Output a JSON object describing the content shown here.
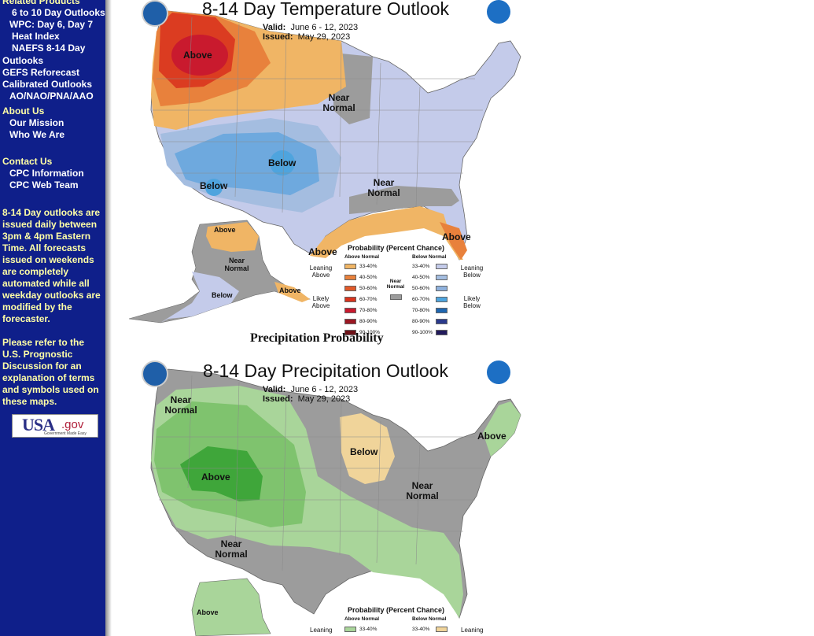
{
  "sidebar": {
    "related_products": "Related Products",
    "links": [
      "6 to 10 Day Outlooks",
      "WPC: Day 6, Day 7",
      "Heat Index",
      "NAEFS 8-14 Day",
      "Outlooks",
      "GEFS Reforecast",
      "Calibrated Outlooks",
      "AO/NAO/PNA/AAO"
    ],
    "about_us": "About Us",
    "our_mission": "Our Mission",
    "who_we_are": "Who We Are",
    "contact_us": "Contact Us",
    "cpc_information": "CPC Information",
    "cpc_web_team": "CPC Web Team",
    "note": "8-14 Day outlooks are issued daily between 3pm & 4pm Eastern Time. All forecasts issued on weekends are completely automated while all weekday outlooks are modified by the forecaster.",
    "refer": "Please refer to the U.S. Prognostic Discussion for an explanation of terms and symbols used on these maps.",
    "usa_gov": {
      "usa": "USA",
      "gov": ".gov",
      "tagline": "Government Made Easy"
    }
  },
  "temperature_map": {
    "title": "8-14 Day Temperature Outlook",
    "valid_label": "Valid:",
    "valid_value": "June 6 - 12, 2023",
    "issued_label": "Issued:",
    "issued_value": "May 29, 2023",
    "labels": [
      "Above",
      "Near Normal",
      "Below",
      "Below",
      "Near Normal",
      "Above",
      "Above",
      "Above",
      "Near Normal",
      "Below",
      "Above"
    ],
    "legend": {
      "title": "Probability (Percent Chance)",
      "above_header": "Above Normal",
      "below_header": "Below Normal",
      "near_header": "Near Normal",
      "leaning_above": "Leaning Above",
      "likely_above": "Likely Above",
      "leaning_below": "Leaning Below",
      "likely_below": "Likely Below",
      "ranges": [
        "33-40%",
        "40-50%",
        "50-60%",
        "60-70%",
        "70-80%",
        "80-90%",
        "90-100%"
      ],
      "above_colors": [
        "#f0b565",
        "#e8813c",
        "#e05a2a",
        "#d9341e",
        "#c91a2e",
        "#9a1722",
        "#6e1218"
      ],
      "below_colors": [
        "#c4cbea",
        "#a4bde0",
        "#8fb1dc",
        "#4ea4de",
        "#1f66b0",
        "#2b3a8c",
        "#221b5c"
      ],
      "near_color": "#9c9c9c"
    }
  },
  "precip_heading": "Precipitation Probability",
  "precipitation_map": {
    "title": "8-14 Day Precipitation Outlook",
    "valid_label": "Valid:",
    "valid_value": "June 6 - 12, 2023",
    "issued_label": "Issued:",
    "issued_value": "May 29, 2023",
    "labels": [
      "Near Normal",
      "Above",
      "Below",
      "Near Normal",
      "Above",
      "Near Normal",
      "Above"
    ],
    "legend": {
      "title": "Probability (Percent Chance)",
      "above_header": "Above Normal",
      "below_header": "Below Normal",
      "leaning": "Leaning",
      "range_first": "33-40%",
      "above_color": "#a9d59a",
      "below_color": "#f0d49a"
    }
  }
}
